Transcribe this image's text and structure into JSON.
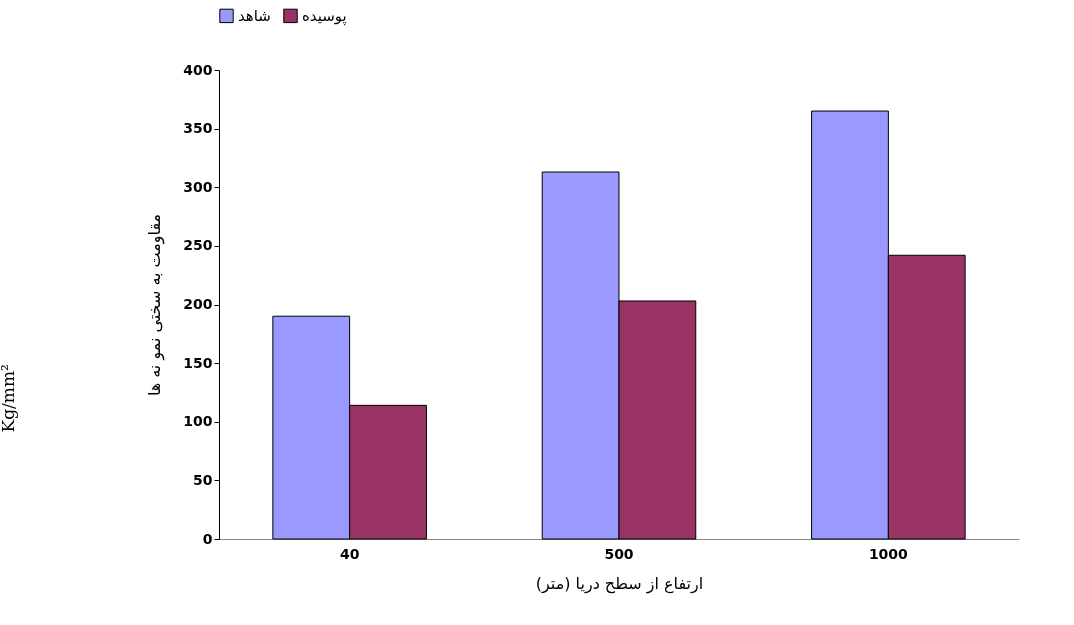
{
  "chart_data": {
    "type": "bar",
    "categories": [
      "40",
      "500",
      "1000"
    ],
    "series": [
      {
        "name": "شاهد",
        "color": "#9999ff",
        "values": [
          190,
          313,
          365
        ]
      },
      {
        "name": "پوسیده",
        "color": "#993366",
        "values": [
          114,
          203,
          242
        ]
      }
    ],
    "xlabel": "ارتفاع از سطح دریا (متر)",
    "ylabel": "مقاومت به سختی نمو نه ها",
    "annotations": [
      "Kg/mm²"
    ],
    "ylim": [
      0,
      400
    ],
    "yticks": [
      0,
      50,
      100,
      150,
      200,
      250,
      300,
      350,
      400
    ],
    "grid": false,
    "legend": "top"
  }
}
